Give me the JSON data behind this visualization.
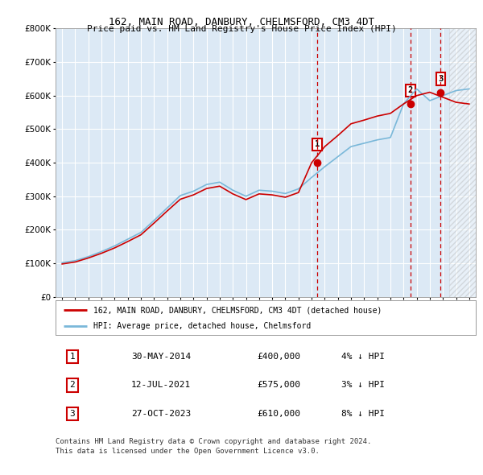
{
  "title": "162, MAIN ROAD, DANBURY, CHELMSFORD, CM3 4DT",
  "subtitle": "Price paid vs. HM Land Registry's House Price Index (HPI)",
  "legend_line1": "162, MAIN ROAD, DANBURY, CHELMSFORD, CM3 4DT (detached house)",
  "legend_line2": "HPI: Average price, detached house, Chelmsford",
  "footer_line1": "Contains HM Land Registry data © Crown copyright and database right 2024.",
  "footer_line2": "This data is licensed under the Open Government Licence v3.0.",
  "ylim": [
    0,
    800000
  ],
  "xlim_start": 1994.5,
  "xlim_end": 2026.5,
  "sale_events": [
    {
      "label": "1",
      "date": "30-MAY-2014",
      "year": 2014.41,
      "price": 400000,
      "pct": "4%",
      "direction": "↓"
    },
    {
      "label": "2",
      "date": "12-JUL-2021",
      "year": 2021.53,
      "price": 575000,
      "pct": "3%",
      "direction": "↓"
    },
    {
      "label": "3",
      "date": "27-OCT-2023",
      "year": 2023.82,
      "price": 610000,
      "pct": "8%",
      "direction": "↓"
    }
  ],
  "hpi_color": "#7ab8d9",
  "price_color": "#cc0000",
  "marker_box_color": "#cc0000",
  "background_color": "#dce9f5",
  "hatch_region_start": 2024.5,
  "hpi_years": [
    1995,
    1996,
    1997,
    1998,
    1999,
    2000,
    2001,
    2002,
    2003,
    2004,
    2005,
    2006,
    2007,
    2008,
    2009,
    2010,
    2011,
    2012,
    2013,
    2014,
    2015,
    2016,
    2017,
    2018,
    2019,
    2020,
    2021,
    2022,
    2023,
    2024,
    2025,
    2026
  ],
  "hpi_values": [
    102000,
    108000,
    120000,
    135000,
    152000,
    172000,
    192000,
    228000,
    265000,
    302000,
    315000,
    335000,
    342000,
    318000,
    300000,
    318000,
    315000,
    308000,
    322000,
    356000,
    388000,
    418000,
    448000,
    458000,
    468000,
    475000,
    575000,
    620000,
    585000,
    600000,
    615000,
    620000
  ],
  "red_years": [
    1995,
    1996,
    1997,
    1998,
    1999,
    2000,
    2001,
    2002,
    2003,
    2004,
    2005,
    2006,
    2007,
    2008,
    2009,
    2010,
    2011,
    2012,
    2013,
    2014,
    2015,
    2016,
    2017,
    2018,
    2019,
    2020,
    2021,
    2022,
    2023,
    2024,
    2025,
    2026
  ],
  "red_values": [
    98000,
    104000,
    116000,
    130000,
    146000,
    165000,
    185000,
    220000,
    256000,
    291000,
    304000,
    323000,
    330000,
    307000,
    290000,
    307000,
    304000,
    297000,
    311000,
    400000,
    448000,
    481000,
    516000,
    527000,
    539000,
    547000,
    575000,
    600000,
    610000,
    595000,
    580000,
    575000
  ]
}
